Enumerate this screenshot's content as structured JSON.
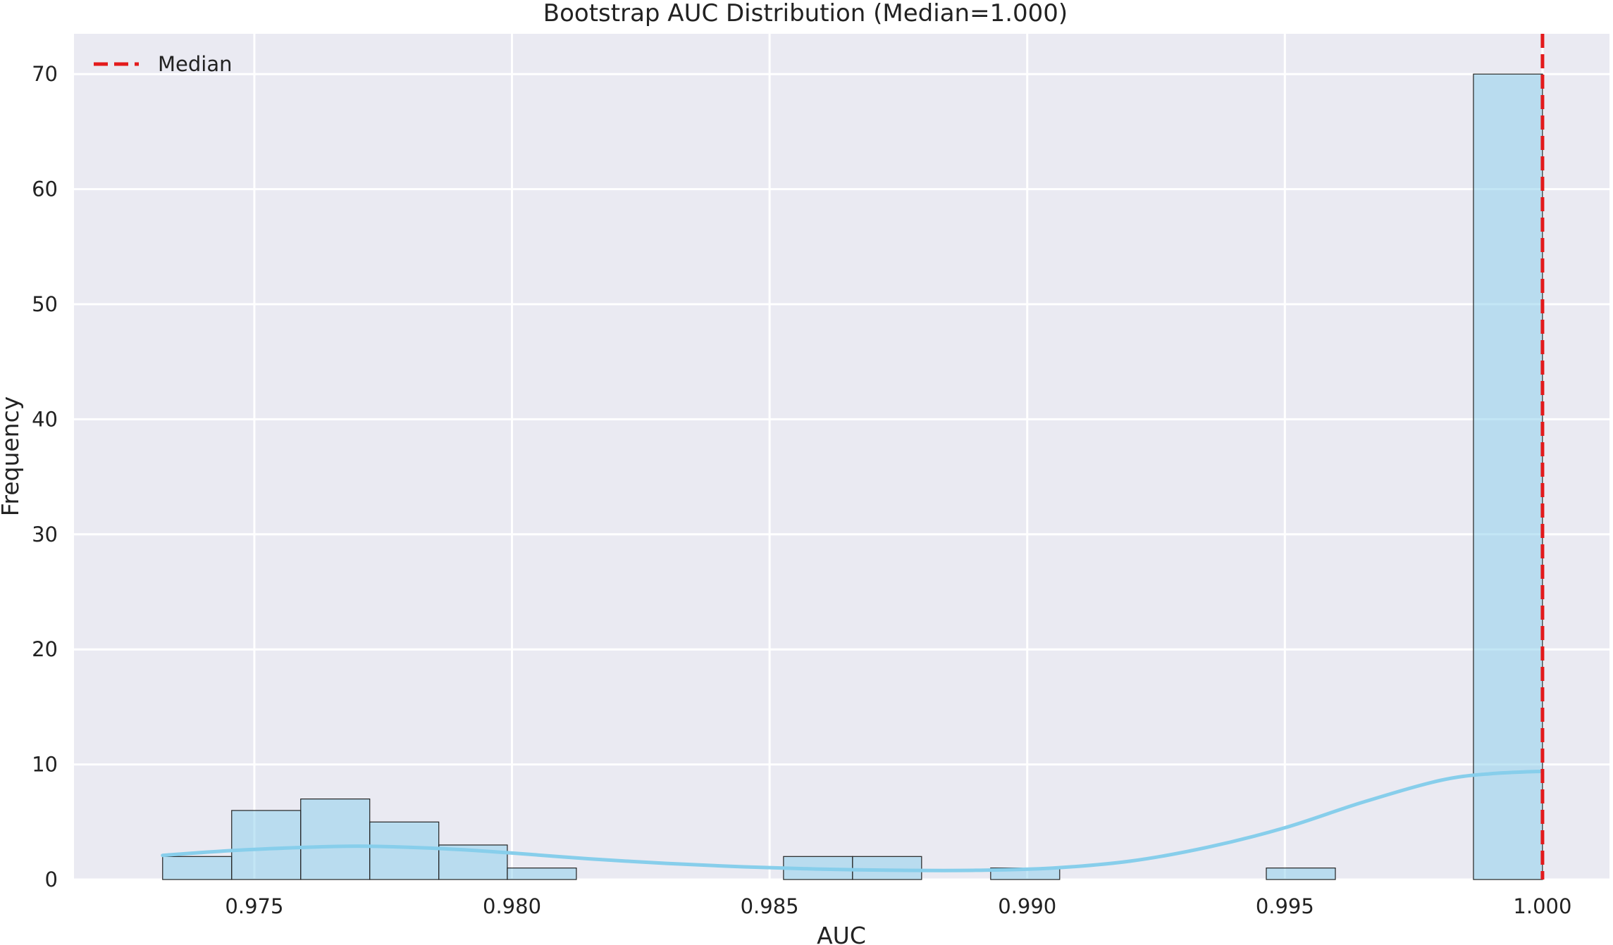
{
  "chart_data": {
    "type": "bar",
    "title": "Bootstrap AUC Distribution (Median=1.000)",
    "xlabel": "AUC",
    "ylabel": "Frequency",
    "xlim": [
      0.9715,
      1.0013
    ],
    "ylim": [
      0,
      73.5
    ],
    "xticks": [
      {
        "value": 0.975,
        "label": "0.975"
      },
      {
        "value": 0.98,
        "label": "0.980"
      },
      {
        "value": 0.985,
        "label": "0.985"
      },
      {
        "value": 0.99,
        "label": "0.990"
      },
      {
        "value": 0.995,
        "label": "0.995"
      },
      {
        "value": 1.0,
        "label": "1.000"
      }
    ],
    "yticks": [
      {
        "value": 0,
        "label": "0"
      },
      {
        "value": 10,
        "label": "10"
      },
      {
        "value": 20,
        "label": "20"
      },
      {
        "value": 30,
        "label": "30"
      },
      {
        "value": 40,
        "label": "40"
      },
      {
        "value": 50,
        "label": "50"
      },
      {
        "value": 60,
        "label": "60"
      },
      {
        "value": 70,
        "label": "70"
      }
    ],
    "bins": [
      {
        "x0": 0.97322,
        "x1": 0.97456,
        "count": 2
      },
      {
        "x0": 0.97456,
        "x1": 0.9759,
        "count": 6
      },
      {
        "x0": 0.9759,
        "x1": 0.97724,
        "count": 7
      },
      {
        "x0": 0.97724,
        "x1": 0.97858,
        "count": 5
      },
      {
        "x0": 0.97858,
        "x1": 0.97991,
        "count": 3
      },
      {
        "x0": 0.97991,
        "x1": 0.98125,
        "count": 1
      },
      {
        "x0": 0.98527,
        "x1": 0.98661,
        "count": 2
      },
      {
        "x0": 0.98661,
        "x1": 0.98795,
        "count": 2
      },
      {
        "x0": 0.98929,
        "x1": 0.99063,
        "count": 1
      },
      {
        "x0": 0.99464,
        "x1": 0.99598,
        "count": 1
      },
      {
        "x0": 0.99866,
        "x1": 1.0,
        "count": 70
      }
    ],
    "kde": {
      "x": [
        0.97322,
        0.9745,
        0.976,
        0.977,
        0.978,
        0.979,
        0.98,
        0.9815,
        0.983,
        0.9845,
        0.986,
        0.9875,
        0.989,
        0.9905,
        0.992,
        0.9935,
        0.995,
        0.9965,
        0.998,
        0.999,
        1.0
      ],
      "y": [
        2.1,
        2.5,
        2.8,
        2.9,
        2.8,
        2.6,
        2.3,
        1.8,
        1.4,
        1.1,
        0.9,
        0.8,
        0.8,
        1.0,
        1.6,
        2.8,
        4.5,
        6.7,
        8.6,
        9.2,
        9.4
      ]
    },
    "median": 1.0,
    "legend": {
      "label": "Median",
      "position": "top-left"
    },
    "grid": true,
    "colors": {
      "plot_background": "#EAEAF2",
      "grid": "#FFFFFF",
      "bar_fill": "#87CEEB",
      "bar_fill_opacity": 0.5,
      "bar_edge": "#222222",
      "kde_line": "#87CEEB",
      "median_line": "#E31A1C"
    }
  }
}
